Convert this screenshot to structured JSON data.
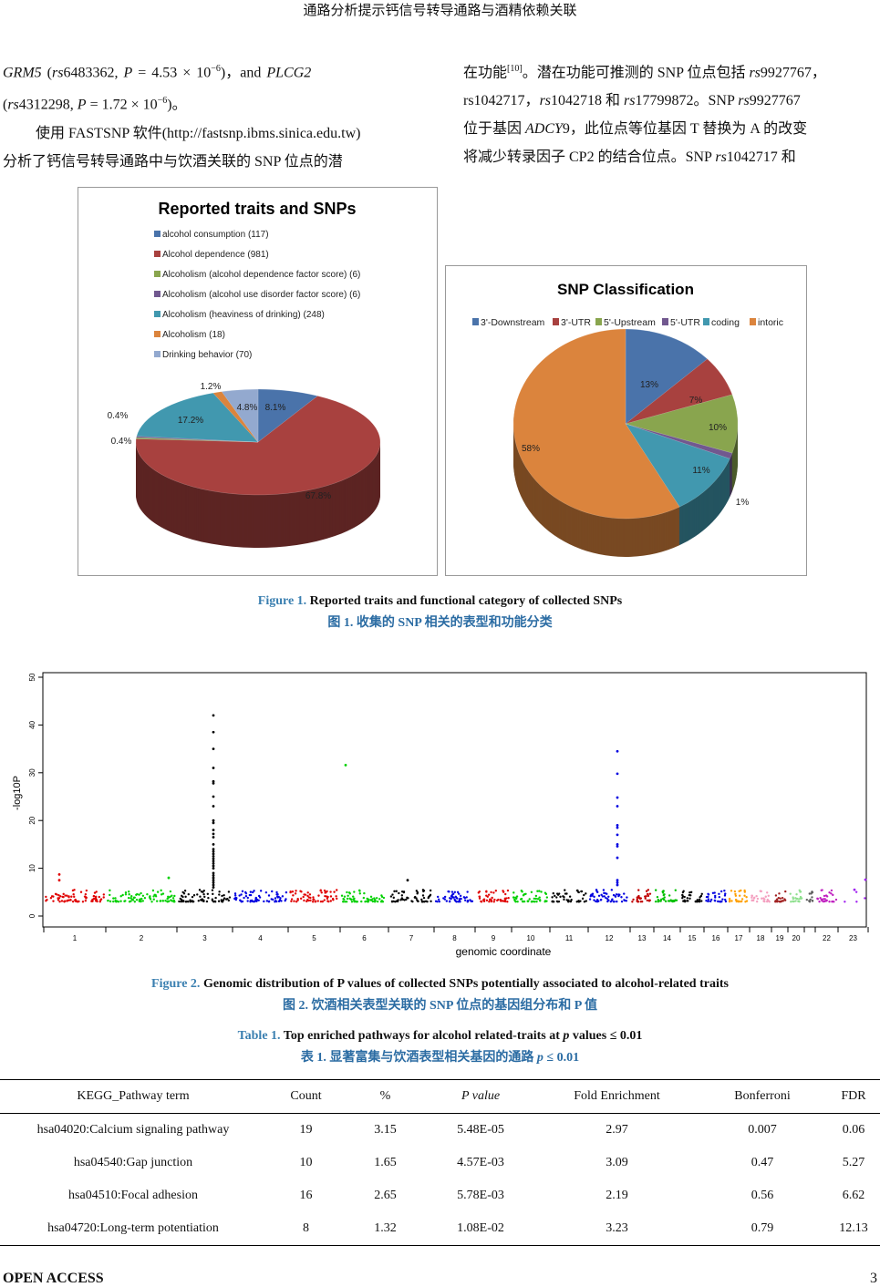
{
  "header": {
    "title": "通路分析提示钙信号转导通路与酒精依赖关联"
  },
  "left_col": {
    "l1": {
      "gene1": "GRM5",
      "a": " (",
      "rs": "rs",
      "a2": "6483362,  ",
      "p": "P",
      "a3": " = 4.53 × 10",
      "exp": "−6",
      "a4": ")，and ",
      "gene2": "PLCG2"
    },
    "l2": {
      "a": "(",
      "rs": "rs",
      "a2": "4312298, ",
      "p": "P",
      "a3": " = 1.72 × 10",
      "exp": "−6",
      "a4": ")。"
    },
    "l3": "使用 FASTSNP 软件(http://fastsnp.ibms.sinica.edu.tw)",
    "l4": "分析了钙信号转导通路中与饮酒关联的  SNP  位点的潜"
  },
  "right_col": {
    "l1": {
      "a": "在功能",
      "ref": "[10]",
      "b": "。潜在功能可推测的 SNP 位点包括 ",
      "rs": "rs",
      "c": "9927767，"
    },
    "l2": {
      "a": "rs1042717，",
      "rs1": "rs",
      "b": "1042718  和  ",
      "rs2": "rs",
      "c": "17799872。SNP  ",
      "rs3": "rs",
      "d": "9927767"
    },
    "l3": {
      "a": "位于基因 ",
      "gene": "ADCY",
      "b": "9，此位点等位基因 T 替换为 A 的改变"
    },
    "l4": {
      "a": "将减少转录因子  CP2  的结合位点。SNP  ",
      "rs": "rs",
      "b": "1042717  和"
    }
  },
  "figure1": {
    "caption_label": "Figure 1.",
    "caption_en": " Reported traits and functional category of collected SNPs",
    "caption_cn": "图 1.  收集的 SNP 相关的表型和功能分类"
  },
  "figure2": {
    "caption_label": "Figure 2.",
    "caption_en": " Genomic distribution of P values of collected SNPs potentially associated to alcohol-related traits",
    "caption_cn": "图 2.  饮酒相关表型关联的 SNP 位点的基因组分布和 P 值"
  },
  "chart_data": [
    {
      "type": "pie",
      "title": "Reported traits and SNPs",
      "legend_position": "top",
      "labels": [
        "alcohol consumption (117)",
        "Alcohol dependence (981)",
        "Alcoholism (alcohol  dependence factor score) (6)",
        "Alcoholism (alcohol  use disorder factor score) (6)",
        "Alcoholism (heaviness  of drinking) (248)",
        "Alcoholism (18)",
        "Drinking behavior  (70)"
      ],
      "counts": [
        117,
        981,
        6,
        6,
        248,
        18,
        70
      ],
      "values": [
        8.1,
        67.8,
        0.4,
        0.4,
        17.2,
        1.2,
        4.8
      ],
      "data_labels": [
        "8.1%",
        "67.8%",
        "0.4%",
        "0.4%",
        "17.2%",
        "1.2%",
        "4.8%"
      ],
      "colors": [
        "#4a73aa",
        "#a8413f",
        "#89a54e",
        "#71588f",
        "#4198af",
        "#db843d",
        "#93a9cf"
      ]
    },
    {
      "type": "pie",
      "title": "SNP Classification",
      "legend_position": "top",
      "labels": [
        "3'-Downstream",
        "3'-UTR",
        "5'-Upstream",
        "5'-UTR",
        "coding",
        "intoric"
      ],
      "values": [
        13,
        7,
        10,
        1,
        11,
        58
      ],
      "data_labels": [
        "13%",
        "7%",
        "10%",
        "1%",
        "11%",
        "58%"
      ],
      "colors": [
        "#4a73aa",
        "#a8413f",
        "#89a54e",
        "#71588f",
        "#4198af",
        "#db843d"
      ]
    },
    {
      "type": "scatter",
      "title": "",
      "xlabel": "genomic coordinate",
      "ylabel": "-log10P",
      "ylim": [
        0,
        50
      ],
      "yticks": [
        "0",
        "10",
        "20",
        "30",
        "40",
        "50"
      ],
      "chromosomes": [
        "1",
        "2",
        "3",
        "4",
        "5",
        "6",
        "7",
        "8",
        "9",
        "10",
        "11",
        "12",
        "13",
        "14",
        "15",
        "16",
        "17",
        "18",
        "19",
        "20",
        "",
        "22",
        "23"
      ],
      "colors": [
        "#e00000",
        "#00d000",
        "#000000",
        "#0000e0",
        "#e00000",
        "#00d000",
        "#000000",
        "#0000e0",
        "#e00000",
        "#00d000",
        "#000000",
        "#0000e0",
        "#c00000",
        "#00c000",
        "#000000",
        "#0000e0",
        "#ffa000",
        "#f4a0c0",
        "#a02020",
        "#90e090",
        "#606060",
        "#c020c0",
        "#a020f0"
      ],
      "peaks": [
        {
          "chr": "3",
          "values": [
            42,
            38.5,
            35,
            31,
            28.2,
            27.8,
            25,
            23,
            20,
            19.5,
            18,
            17.2,
            16.5,
            15,
            14,
            13.5,
            13,
            12.5,
            12,
            11.5,
            11,
            10.5,
            10,
            9,
            8.5,
            8,
            7.5,
            7,
            6.5,
            6
          ]
        },
        {
          "chr": "12",
          "values": [
            34.5,
            29.8,
            24.8,
            23,
            19,
            18.5,
            17,
            15,
            14.6,
            12.2,
            7.5,
            7,
            6.5
          ]
        },
        {
          "chr": "6",
          "values": [
            31.6
          ]
        },
        {
          "chr": "1",
          "values": [
            8.7,
            7.5
          ]
        },
        {
          "chr": "7",
          "values": [
            7.5
          ]
        },
        {
          "chr": "2",
          "values": [
            8
          ]
        },
        {
          "chr": "23",
          "values": [
            7.6,
            5.5
          ]
        }
      ],
      "baseline_range": [
        3,
        5.5
      ]
    }
  ],
  "table1": {
    "caption_label": "Table 1.",
    "caption_en": " Top enriched pathways for alcohol related-traits at ",
    "caption_p": "p",
    "caption_en2": " values ≤ 0.01",
    "caption_cn": "表 1.  显著富集与饮酒表型相关基因的通路 ",
    "caption_cn_p": "p",
    "caption_cn2": " ≤ 0.01",
    "columns": [
      "KEGG_Pathway term",
      "Count",
      "%",
      "P value",
      "Fold Enrichment",
      "Bonferroni",
      "FDR"
    ],
    "rows": [
      [
        "hsa04020:Calcium signaling pathway",
        "19",
        "3.15",
        "5.48E-05",
        "2.97",
        "0.007",
        "0.06"
      ],
      [
        "hsa04540:Gap junction",
        "10",
        "1.65",
        "4.57E-03",
        "3.09",
        "0.47",
        "5.27"
      ],
      [
        "hsa04510:Focal adhesion",
        "16",
        "2.65",
        "5.78E-03",
        "2.19",
        "0.56",
        "6.62"
      ],
      [
        "hsa04720:Long-term potentiation",
        "8",
        "1.32",
        "1.08E-02",
        "3.23",
        "0.79",
        "12.13"
      ]
    ]
  },
  "footer": {
    "left": "OPEN ACCESS",
    "page": "3"
  }
}
